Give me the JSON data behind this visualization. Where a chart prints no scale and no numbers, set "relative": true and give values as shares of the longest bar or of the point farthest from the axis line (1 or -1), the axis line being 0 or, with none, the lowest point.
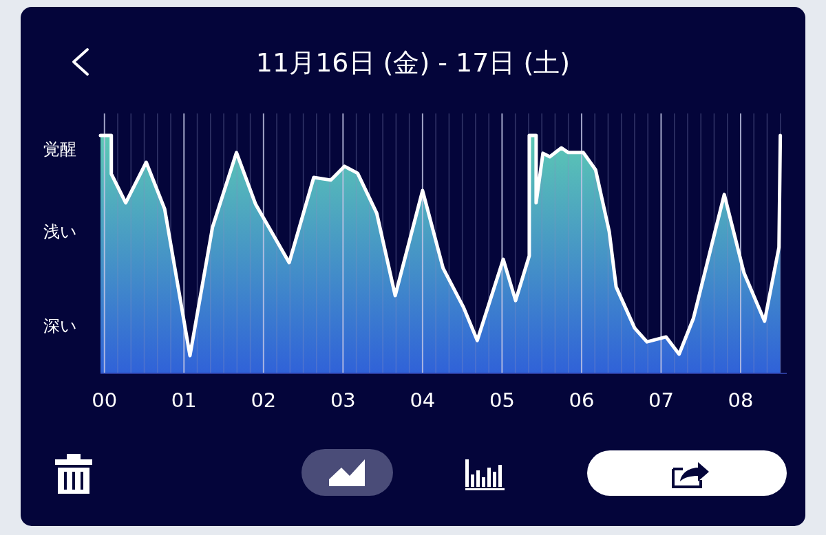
{
  "chart_data": {
    "type": "area",
    "title": "11月16日 (金) - 17日 (土)",
    "relative": true,
    "grid": "x",
    "marker": "none",
    "line_style": "solid",
    "xlim": [
      -0.05,
      8.58
    ],
    "xticks": [
      {
        "value": 0,
        "label": "00"
      },
      {
        "value": 1,
        "label": "01"
      },
      {
        "value": 2,
        "label": "02"
      },
      {
        "value": 3,
        "label": "03"
      },
      {
        "value": 4,
        "label": "04"
      },
      {
        "value": 5,
        "label": "05"
      },
      {
        "value": 6,
        "label": "06"
      },
      {
        "value": 7,
        "label": "07"
      },
      {
        "value": 8,
        "label": "08"
      }
    ],
    "annotations": [
      "覚醒",
      "浅い",
      "深い"
    ],
    "series": [
      {
        "color": "#ffffff",
        "x": [
          -0.05,
          0.086,
          0.086,
          0.267,
          0.525,
          0.757,
          1.075,
          1.359,
          1.66,
          1.901,
          2.323,
          2.632,
          2.847,
          3.019,
          3.183,
          3.424,
          3.656,
          4.0,
          4.258,
          4.516,
          4.688,
          5.015,
          5.17,
          5.342,
          5.342,
          5.428,
          5.428,
          5.514,
          5.6,
          5.746,
          5.832,
          6.022,
          6.176,
          6.348,
          6.434,
          6.667,
          6.822,
          7.062,
          7.226,
          7.406,
          7.794,
          8.043,
          8.301,
          8.482,
          8.499
        ],
        "values": [
          1.0,
          1.0,
          0.838,
          0.716,
          0.887,
          0.69,
          0.072,
          0.614,
          0.928,
          0.71,
          0.464,
          0.823,
          0.812,
          0.87,
          0.841,
          0.672,
          0.325,
          0.768,
          0.441,
          0.275,
          0.136,
          0.478,
          0.304,
          0.493,
          1.0,
          1.0,
          0.716,
          0.925,
          0.91,
          0.948,
          0.928,
          0.928,
          0.855,
          0.594,
          0.362,
          0.188,
          0.13,
          0.151,
          0.078,
          0.229,
          0.751,
          0.42,
          0.217,
          0.528,
          1.0
        ]
      }
    ]
  }
}
